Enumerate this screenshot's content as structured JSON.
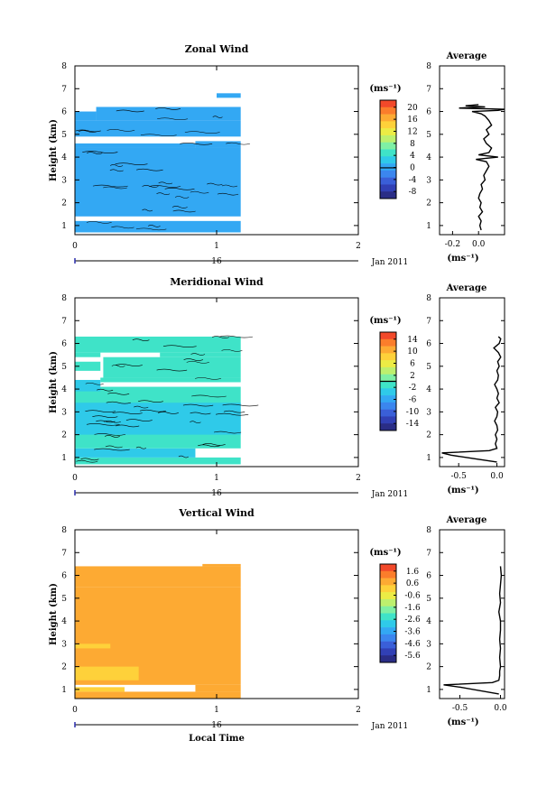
{
  "chart_data": [
    {
      "type": "heatmap",
      "title": "Zonal Wind",
      "ylabel": "Height (km)",
      "ylim": [
        0.6,
        8
      ],
      "yticks": [
        "1",
        "2",
        "3",
        "4",
        "5",
        "6",
        "7",
        "8"
      ],
      "xticks": [
        "0",
        "1",
        "2"
      ],
      "xlim": [
        0,
        2
      ],
      "date_label": "16",
      "date_right": "Jan 2011",
      "colorbar": {
        "unit": "(ms⁻¹)",
        "ticks": [
          "20",
          "16",
          "12",
          "8",
          "4",
          "0",
          "-4",
          "-8"
        ],
        "range": [
          -10,
          22
        ],
        "marker": 0
      },
      "blocks": [
        {
          "x0": 0,
          "x1": 1.17,
          "y0": 0.7,
          "y1": 1.2,
          "value": 0
        },
        {
          "x0": 0,
          "x1": 1.17,
          "y0": 1.4,
          "y1": 4.4,
          "value": 0
        },
        {
          "x0": 0,
          "x1": 0.85,
          "y0": 4.4,
          "y1": 4.6,
          "value": 0
        },
        {
          "x0": 0.85,
          "x1": 1.17,
          "y0": 4.4,
          "y1": 4.7,
          "value": 0
        },
        {
          "x0": 0,
          "x1": 1.17,
          "y0": 4.9,
          "y1": 5.6,
          "value": 0
        },
        {
          "x0": 0,
          "x1": 0.15,
          "y0": 5.6,
          "y1": 6.0,
          "value": 0
        },
        {
          "x0": 0.15,
          "x1": 1.17,
          "y0": 5.6,
          "y1": 6.2,
          "value": 0
        },
        {
          "x0": 1.0,
          "x1": 1.17,
          "y0": 6.6,
          "y1": 6.8,
          "value": 0
        }
      ],
      "average": {
        "title": "Average",
        "xlabel": "(ms⁻¹)",
        "xticks": [
          "-0.2",
          "0.0"
        ],
        "xlim": [
          -0.3,
          0.2
        ],
        "heights": [
          0.8,
          1.0,
          1.2,
          1.4,
          1.6,
          1.8,
          2.0,
          2.2,
          2.4,
          2.6,
          2.8,
          3.0,
          3.2,
          3.4,
          3.6,
          3.8,
          3.9,
          4.0,
          4.1,
          4.2,
          4.4,
          4.6,
          4.8,
          5.0,
          5.2,
          5.4,
          5.6,
          5.8,
          5.9,
          6.0,
          6.05,
          6.1,
          6.15,
          6.2,
          6.25,
          6.3
        ],
        "values": [
          0.02,
          0.01,
          0.02,
          0.0,
          0.03,
          0.01,
          0.02,
          0.0,
          0.01,
          0.03,
          0.02,
          0.05,
          0.04,
          0.06,
          0.08,
          0.06,
          -0.02,
          0.15,
          0.0,
          0.08,
          0.1,
          0.06,
          0.04,
          0.08,
          0.06,
          0.1,
          0.08,
          0.05,
          0.02,
          -0.05,
          0.15,
          0.2,
          -0.15,
          0.05,
          -0.1,
          0.0
        ]
      }
    },
    {
      "type": "heatmap",
      "title": "Meridional Wind",
      "ylabel": "Height (km)",
      "ylim": [
        0.6,
        8
      ],
      "yticks": [
        "1",
        "2",
        "3",
        "4",
        "5",
        "6",
        "7",
        "8"
      ],
      "xticks": [
        "0",
        "1",
        "2"
      ],
      "xlim": [
        0,
        2
      ],
      "date_label": "16",
      "date_right": "Jan 2011",
      "colorbar": {
        "unit": "(ms⁻¹)",
        "ticks": [
          "14",
          "10",
          "6",
          "2",
          "-2",
          "-6",
          "-10",
          "-14"
        ],
        "range": [
          -16,
          16
        ],
        "marker": 0
      },
      "blocks": [
        {
          "x0": 0,
          "x1": 1.17,
          "y0": 0.7,
          "y1": 1.0,
          "value": -1
        },
        {
          "x0": 0,
          "x1": 0.85,
          "y0": 1.0,
          "y1": 1.4,
          "value": -3
        },
        {
          "x0": 0,
          "x1": 1.17,
          "y0": 1.4,
          "y1": 4.1,
          "value": -1
        },
        {
          "x0": 0,
          "x1": 1.17,
          "y0": 2.0,
          "y1": 3.4,
          "value": -3
        },
        {
          "x0": 0,
          "x1": 0.18,
          "y0": 3.9,
          "y1": 4.4,
          "value": -3
        },
        {
          "x0": 0.18,
          "x1": 1.17,
          "y0": 4.3,
          "y1": 4.5,
          "value": -1
        },
        {
          "x0": 0.2,
          "x1": 1.17,
          "y0": 4.5,
          "y1": 5.4,
          "value": -1
        },
        {
          "x0": 0,
          "x1": 0.18,
          "y0": 4.8,
          "y1": 5.2,
          "value": -1
        },
        {
          "x0": 0,
          "x1": 0.18,
          "y0": 5.4,
          "y1": 5.6,
          "value": -1
        },
        {
          "x0": 0.6,
          "x1": 1.17,
          "y0": 5.4,
          "y1": 5.6,
          "value": -1
        },
        {
          "x0": 0,
          "x1": 1.17,
          "y0": 5.6,
          "y1": 6.3,
          "value": -1
        }
      ],
      "average": {
        "title": "Average",
        "xlabel": "(ms⁻¹)",
        "xticks": [
          "-0.5",
          "0.0"
        ],
        "xlim": [
          -0.75,
          0.1
        ],
        "heights": [
          0.8,
          1.1,
          1.2,
          1.3,
          1.4,
          1.6,
          1.8,
          2.0,
          2.2,
          2.4,
          2.6,
          2.8,
          3.0,
          3.2,
          3.4,
          3.6,
          3.8,
          4.0,
          4.2,
          4.4,
          4.6,
          4.8,
          5.0,
          5.2,
          5.4,
          5.6,
          5.8,
          6.0,
          6.2,
          6.3
        ],
        "values": [
          0.0,
          -0.6,
          -0.72,
          -0.1,
          0.0,
          -0.02,
          0.0,
          -0.02,
          0.01,
          0.0,
          -0.03,
          0.0,
          0.01,
          -0.02,
          0.03,
          0.0,
          0.02,
          0.0,
          -0.03,
          0.01,
          0.02,
          0.0,
          0.03,
          0.01,
          0.05,
          0.02,
          -0.04,
          0.03,
          0.05,
          0.02
        ]
      }
    },
    {
      "type": "heatmap",
      "title": "Vertical Wind",
      "ylabel": "Height (km)",
      "xlabel": "Local Time",
      "ylim": [
        0.6,
        8
      ],
      "yticks": [
        "1",
        "2",
        "3",
        "4",
        "5",
        "6",
        "7",
        "8"
      ],
      "xticks": [
        "0",
        "1",
        "2"
      ],
      "xlim": [
        0,
        2
      ],
      "date_label": "16",
      "date_right": "Jan 2011",
      "colorbar": {
        "unit": "(ms⁻¹)",
        "ticks": [
          "1.6",
          "0.6",
          "-0.6",
          "-1.6",
          "-2.6",
          "-3.6",
          "-4.6",
          "-5.6"
        ],
        "range": [
          -6.3,
          2.2
        ],
        "marker": null
      },
      "blocks": [
        {
          "x0": 0,
          "x1": 1.17,
          "y0": 0.6,
          "y1": 0.9,
          "value": 0.6
        },
        {
          "x0": 0,
          "x1": 0.35,
          "y0": 0.9,
          "y1": 1.1,
          "value": 0.0
        },
        {
          "x0": 0.85,
          "x1": 1.17,
          "y0": 0.9,
          "y1": 1.2,
          "value": 0.6
        },
        {
          "x0": 0,
          "x1": 1.17,
          "y0": 1.2,
          "y1": 5.5,
          "value": 0.6
        },
        {
          "x0": 0,
          "x1": 0.45,
          "y0": 1.4,
          "y1": 2.0,
          "value": -0.1
        },
        {
          "x0": 0,
          "x1": 0.25,
          "y0": 2.8,
          "y1": 3.0,
          "value": -0.1
        },
        {
          "x0": 0,
          "x1": 1.17,
          "y0": 5.5,
          "y1": 6.4,
          "value": 0.6
        },
        {
          "x0": 0.9,
          "x1": 1.17,
          "y0": 6.4,
          "y1": 6.5,
          "value": 0.6
        }
      ],
      "average": {
        "title": "Average",
        "xlabel": "(ms⁻¹)",
        "xticks": [
          "-0.5",
          "0.0"
        ],
        "xlim": [
          -0.75,
          0.05
        ],
        "heights": [
          0.8,
          1.1,
          1.2,
          1.3,
          1.4,
          1.6,
          1.8,
          2.0,
          2.4,
          2.8,
          3.2,
          3.6,
          4.0,
          4.4,
          4.8,
          5.2,
          5.6,
          6.0,
          6.4
        ],
        "values": [
          -0.02,
          -0.5,
          -0.7,
          -0.1,
          -0.02,
          -0.01,
          -0.01,
          0.0,
          -0.01,
          0.0,
          -0.01,
          0.0,
          0.0,
          -0.02,
          0.0,
          -0.01,
          0.0,
          0.01,
          0.0
        ]
      }
    }
  ]
}
